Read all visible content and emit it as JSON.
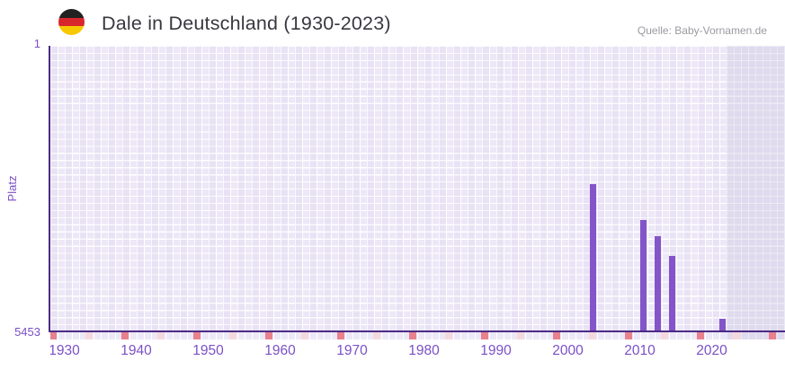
{
  "header": {
    "title": "Dale in Deutschland (1930-2023)",
    "source": "Quelle: Baby-Vornamen.de",
    "flag_icon": "german-flag-circle",
    "flag_colors": {
      "top": "#222222",
      "middle": "#d8272c",
      "bottom": "#f6c800"
    }
  },
  "chart_data": {
    "type": "bar",
    "title": "Dale in Deutschland (1930-2023)",
    "xlabel": "",
    "ylabel": "Platz",
    "legend": false,
    "grid": true,
    "y_axis": {
      "min": 1,
      "max": 5453,
      "inverted": true,
      "top_tick": "1",
      "bottom_tick": "5453"
    },
    "x_axis": {
      "start": 1930,
      "visible_end": 2032,
      "data_end": 2023,
      "tick_labels": [
        "1930",
        "1940",
        "1950",
        "1960",
        "1970",
        "1980",
        "1990",
        "2000",
        "2010",
        "2020"
      ],
      "decade_marks": [
        1930,
        1940,
        1950,
        1960,
        1970,
        1980,
        1990,
        2000,
        2010,
        2020,
        2030
      ],
      "middecade_marks": [
        1935,
        1945,
        1955,
        1965,
        1975,
        1985,
        1995,
        2005,
        2015,
        2025
      ]
    },
    "series": [
      {
        "name": "Platz",
        "points": [
          {
            "year": 2005,
            "rank": 2650
          },
          {
            "year": 2012,
            "rank": 3340
          },
          {
            "year": 2014,
            "rank": 3640
          },
          {
            "year": 2016,
            "rank": 4020
          },
          {
            "year": 2023,
            "rank": 5220
          }
        ]
      }
    ],
    "colors": {
      "bar": "#8355c8",
      "axis_line": "#4b2b85",
      "tick_text": "#7b50c6",
      "grid_cell": "#ece8f7",
      "grid_line": "#ffffff",
      "future_cell": "#dfdaee",
      "future_line": "#eceaf4",
      "decade_mark": "#e8808d",
      "middecade_mark": "#f5d8de",
      "title_text": "#3a3740",
      "source_text": "#9b99a0"
    }
  }
}
